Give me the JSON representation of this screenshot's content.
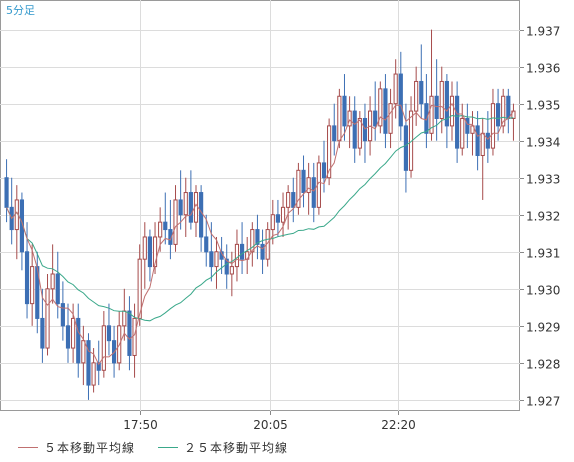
{
  "chart_data": {
    "type": "candlestick",
    "title": "5分足",
    "y_ticks": [
      "1.937",
      "1.936",
      "1.935",
      "1.934",
      "1.933",
      "1.932",
      "1.931",
      "1.930",
      "1.929",
      "1.928",
      "1.927"
    ],
    "x_ticks": [
      "17:50",
      "20:05",
      "22:20"
    ],
    "ylim": [
      1.9267,
      1.9378
    ],
    "grid": true,
    "legend_position": "bottom-left",
    "colors": {
      "up": "#a64b4b",
      "down": "#3c6fb4",
      "ma5": "#c07070",
      "ma25": "#3aa88a",
      "grid": "#dcdcdc",
      "axis": "#888888",
      "title": "#3399cc"
    },
    "series": [
      {
        "name": "５本移動平均線",
        "type": "line"
      },
      {
        "name": "２５本移動平均線",
        "type": "line"
      }
    ],
    "ohlc": [
      [
        1.933,
        1.9335,
        1.9318,
        1.9322
      ],
      [
        1.9322,
        1.933,
        1.9312,
        1.9316
      ],
      [
        1.9316,
        1.9328,
        1.9308,
        1.9324
      ],
      [
        1.9324,
        1.9326,
        1.9305,
        1.931
      ],
      [
        1.931,
        1.9318,
        1.9292,
        1.9296
      ],
      [
        1.9296,
        1.9312,
        1.929,
        1.9306
      ],
      [
        1.9306,
        1.931,
        1.9288,
        1.9292
      ],
      [
        1.9292,
        1.93,
        1.928,
        1.9284
      ],
      [
        1.9284,
        1.9304,
        1.9282,
        1.93
      ],
      [
        1.93,
        1.9312,
        1.9296,
        1.9304
      ],
      [
        1.9304,
        1.931,
        1.9292,
        1.9296
      ],
      [
        1.9296,
        1.9302,
        1.9286,
        1.929
      ],
      [
        1.929,
        1.9296,
        1.928,
        1.9284
      ],
      [
        1.9284,
        1.9296,
        1.928,
        1.9292
      ],
      [
        1.9292,
        1.9296,
        1.9276,
        1.928
      ],
      [
        1.928,
        1.929,
        1.9274,
        1.9286
      ],
      [
        1.9286,
        1.9288,
        1.927,
        1.9274
      ],
      [
        1.9274,
        1.9284,
        1.9272,
        1.928
      ],
      [
        1.928,
        1.9286,
        1.9274,
        1.9278
      ],
      [
        1.9278,
        1.9294,
        1.9276,
        1.929
      ],
      [
        1.929,
        1.9296,
        1.9282,
        1.9286
      ],
      [
        1.9286,
        1.929,
        1.9276,
        1.928
      ],
      [
        1.928,
        1.9294,
        1.9278,
        1.929
      ],
      [
        1.929,
        1.93,
        1.9286,
        1.9294
      ],
      [
        1.9294,
        1.9298,
        1.9278,
        1.9282
      ],
      [
        1.9282,
        1.9296,
        1.9276,
        1.9292
      ],
      [
        1.9292,
        1.9312,
        1.929,
        1.9308
      ],
      [
        1.9308,
        1.9318,
        1.93,
        1.9314
      ],
      [
        1.9314,
        1.9316,
        1.9302,
        1.9306
      ],
      [
        1.9306,
        1.9318,
        1.9304,
        1.9314
      ],
      [
        1.9314,
        1.9322,
        1.931,
        1.9318
      ],
      [
        1.9318,
        1.9326,
        1.9312,
        1.9316
      ],
      [
        1.9316,
        1.9324,
        1.9308,
        1.9312
      ],
      [
        1.9312,
        1.9328,
        1.931,
        1.9324
      ],
      [
        1.9324,
        1.9332,
        1.9316,
        1.932
      ],
      [
        1.932,
        1.933,
        1.9314,
        1.9326
      ],
      [
        1.9326,
        1.9332,
        1.9316,
        1.9318
      ],
      [
        1.9318,
        1.9328,
        1.9314,
        1.9326
      ],
      [
        1.9326,
        1.9328,
        1.931,
        1.9314
      ],
      [
        1.9314,
        1.932,
        1.9306,
        1.931
      ],
      [
        1.931,
        1.9318,
        1.9302,
        1.9306
      ],
      [
        1.9306,
        1.9314,
        1.93,
        1.931
      ],
      [
        1.931,
        1.9314,
        1.9304,
        1.9308
      ],
      [
        1.9308,
        1.9312,
        1.93,
        1.9304
      ],
      [
        1.9304,
        1.931,
        1.9298,
        1.9306
      ],
      [
        1.9306,
        1.9316,
        1.9302,
        1.9312
      ],
      [
        1.9312,
        1.9318,
        1.9304,
        1.9308
      ],
      [
        1.9308,
        1.9314,
        1.9304,
        1.931
      ],
      [
        1.931,
        1.9318,
        1.9306,
        1.9316
      ],
      [
        1.9316,
        1.932,
        1.9308,
        1.9312
      ],
      [
        1.9312,
        1.9316,
        1.9304,
        1.9308
      ],
      [
        1.9308,
        1.9318,
        1.9306,
        1.9316
      ],
      [
        1.9316,
        1.9324,
        1.9312,
        1.932
      ],
      [
        1.932,
        1.9324,
        1.9314,
        1.9318
      ],
      [
        1.9318,
        1.9326,
        1.9314,
        1.9322
      ],
      [
        1.9322,
        1.9328,
        1.9316,
        1.9326
      ],
      [
        1.9326,
        1.933,
        1.9318,
        1.9322
      ],
      [
        1.9322,
        1.9334,
        1.932,
        1.9332
      ],
      [
        1.9332,
        1.9336,
        1.9322,
        1.9326
      ],
      [
        1.9326,
        1.9334,
        1.932,
        1.933
      ],
      [
        1.933,
        1.9334,
        1.9318,
        1.9322
      ],
      [
        1.9322,
        1.9336,
        1.932,
        1.9334
      ],
      [
        1.9334,
        1.934,
        1.9326,
        1.933
      ],
      [
        1.933,
        1.9346,
        1.9328,
        1.9344
      ],
      [
        1.9344,
        1.935,
        1.9336,
        1.934
      ],
      [
        1.934,
        1.9354,
        1.9338,
        1.9352
      ],
      [
        1.9352,
        1.9358,
        1.934,
        1.9344
      ],
      [
        1.9344,
        1.9352,
        1.9338,
        1.9348
      ],
      [
        1.9348,
        1.9352,
        1.9334,
        1.9338
      ],
      [
        1.9338,
        1.9348,
        1.9336,
        1.9346
      ],
      [
        1.9346,
        1.935,
        1.9334,
        1.934
      ],
      [
        1.934,
        1.9352,
        1.9336,
        1.9348
      ],
      [
        1.9348,
        1.9356,
        1.934,
        1.9344
      ],
      [
        1.9344,
        1.9356,
        1.9342,
        1.9354
      ],
      [
        1.9354,
        1.9358,
        1.9338,
        1.9342
      ],
      [
        1.9342,
        1.9354,
        1.9338,
        1.935
      ],
      [
        1.935,
        1.9362,
        1.9346,
        1.9358
      ],
      [
        1.9358,
        1.9364,
        1.934,
        1.9344
      ],
      [
        1.9344,
        1.935,
        1.9326,
        1.9332
      ],
      [
        1.9332,
        1.9352,
        1.933,
        1.9348
      ],
      [
        1.9348,
        1.936,
        1.9344,
        1.9356
      ],
      [
        1.9356,
        1.9366,
        1.9346,
        1.935
      ],
      [
        1.935,
        1.9358,
        1.9338,
        1.9342
      ],
      [
        1.9342,
        1.937,
        1.934,
        1.9352
      ],
      [
        1.9352,
        1.9362,
        1.934,
        1.9346
      ],
      [
        1.9346,
        1.936,
        1.9342,
        1.9356
      ],
      [
        1.9356,
        1.9358,
        1.9338,
        1.9344
      ],
      [
        1.9344,
        1.9356,
        1.934,
        1.9352
      ],
      [
        1.9352,
        1.9356,
        1.9334,
        1.9338
      ],
      [
        1.9338,
        1.935,
        1.9336,
        1.9346
      ],
      [
        1.9346,
        1.935,
        1.9338,
        1.9342
      ],
      [
        1.9342,
        1.9348,
        1.9336,
        1.9344
      ],
      [
        1.9344,
        1.9348,
        1.9332,
        1.9336
      ],
      [
        1.9336,
        1.9346,
        1.9324,
        1.9342
      ],
      [
        1.9342,
        1.9348,
        1.9334,
        1.9338
      ],
      [
        1.9338,
        1.9354,
        1.9336,
        1.935
      ],
      [
        1.935,
        1.9354,
        1.934,
        1.9344
      ],
      [
        1.9344,
        1.9354,
        1.9342,
        1.9352
      ],
      [
        1.9352,
        1.9354,
        1.9342,
        1.9346
      ],
      [
        1.9346,
        1.935,
        1.934,
        1.9348
      ]
    ]
  },
  "legend": {
    "ma5_label": "５本移動平均線",
    "ma25_label": "２５本移動平均線"
  }
}
